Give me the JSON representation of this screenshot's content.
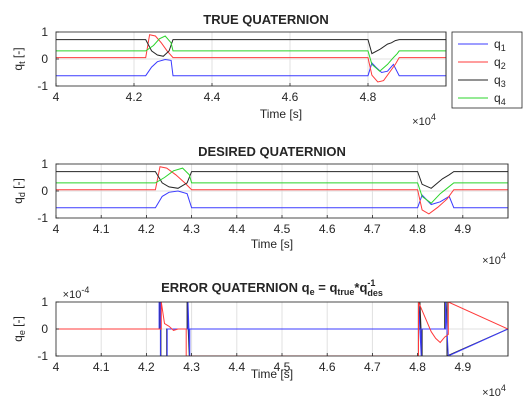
{
  "chart_data": [
    {
      "type": "line",
      "title": "TRUE QUATERNION",
      "xlabel": "Time [s]",
      "ylabel_main": "q",
      "ylabel_sub": "t",
      "ylabel_unit": "[-]",
      "xlim": [
        40000,
        50000
      ],
      "ylim": [
        -1,
        1
      ],
      "x_ticks": [
        "4",
        "4.2",
        "4.4",
        "4.6",
        "4.8"
      ],
      "x_tick_values": [
        40000,
        42000,
        44000,
        46000,
        48000
      ],
      "y_ticks": [
        "-1",
        "0",
        "1"
      ],
      "y_tick_values": [
        -1,
        0,
        1
      ],
      "x_multiplier_base": "×10",
      "x_multiplier_exp": "4",
      "grid": true,
      "legend": {
        "placement": "right",
        "entries": [
          {
            "main": "q",
            "sub": "1",
            "color": "#3b3bff"
          },
          {
            "main": "q",
            "sub": "2",
            "color": "#ff3b3b"
          },
          {
            "main": "q",
            "sub": "3",
            "color": "#262626"
          },
          {
            "main": "q",
            "sub": "4",
            "color": "#2bd42b"
          }
        ]
      },
      "series": [
        {
          "color": "#3b3bff",
          "x": [
            40000,
            42300,
            42450,
            42600,
            42800,
            42950,
            43000,
            48000,
            48100,
            48200,
            48350,
            48500,
            48650,
            48800,
            50000
          ],
          "y": [
            -0.62,
            -0.62,
            -0.3,
            -0.1,
            -0.02,
            -0.05,
            -0.62,
            -0.62,
            -0.15,
            -0.3,
            -0.5,
            -0.45,
            -0.2,
            -0.62,
            -0.62
          ]
        },
        {
          "color": "#ff3b3b",
          "x": [
            40000,
            42300,
            42400,
            42550,
            42700,
            42850,
            43000,
            48000,
            48100,
            48250,
            48400,
            48550,
            48700,
            48800,
            50000
          ],
          "y": [
            0.05,
            0.05,
            0.9,
            0.85,
            0.6,
            0.3,
            0.05,
            0.05,
            -0.6,
            -0.85,
            -0.8,
            -0.5,
            -0.2,
            0.05,
            0.05
          ]
        },
        {
          "color": "#262626",
          "x": [
            40000,
            42300,
            42450,
            42600,
            42750,
            42900,
            43000,
            48000,
            48100,
            48300,
            48500,
            48600,
            48700,
            48800,
            50000
          ],
          "y": [
            0.72,
            0.72,
            0.3,
            0.15,
            0.1,
            0.3,
            0.72,
            0.72,
            0.2,
            0.35,
            0.55,
            0.6,
            0.68,
            0.72,
            0.72
          ]
        },
        {
          "color": "#2bd42b",
          "x": [
            40000,
            42300,
            42500,
            42650,
            42800,
            42950,
            43000,
            48000,
            48100,
            48300,
            48500,
            48650,
            48750,
            48800,
            50000
          ],
          "y": [
            0.3,
            0.3,
            0.5,
            0.75,
            0.85,
            0.6,
            0.3,
            0.3,
            -0.2,
            -0.45,
            -0.2,
            0.05,
            0.2,
            0.3,
            0.3
          ]
        }
      ]
    },
    {
      "type": "line",
      "title": "DESIRED QUATERNION",
      "xlabel": "Time [s]",
      "ylabel_main": "q",
      "ylabel_sub": "d",
      "ylabel_unit": "[-]",
      "xlim": [
        40000,
        50000
      ],
      "ylim": [
        -1,
        1
      ],
      "x_ticks": [
        "4",
        "4.1",
        "4.2",
        "4.3",
        "4.4",
        "4.5",
        "4.6",
        "4.7",
        "4.8",
        "4.9"
      ],
      "x_tick_values": [
        40000,
        41000,
        42000,
        43000,
        44000,
        45000,
        46000,
        47000,
        48000,
        49000
      ],
      "y_ticks": [
        "-1",
        "0",
        "1"
      ],
      "y_tick_values": [
        -1,
        0,
        1
      ],
      "x_multiplier_base": "×10",
      "x_multiplier_exp": "4",
      "grid": true,
      "series": [
        {
          "color": "#3b3bff",
          "x": [
            40000,
            42200,
            42350,
            42500,
            42700,
            42900,
            43000,
            48000,
            48100,
            48300,
            48500,
            48700,
            48800,
            50000
          ],
          "y": [
            -0.62,
            -0.62,
            -0.2,
            -0.05,
            0.0,
            -0.1,
            -0.62,
            -0.62,
            -0.15,
            -0.5,
            -0.4,
            -0.2,
            -0.62,
            -0.62
          ]
        },
        {
          "color": "#ff3b3b",
          "x": [
            40000,
            42200,
            42300,
            42450,
            42650,
            42850,
            43000,
            48000,
            48100,
            48250,
            48450,
            48650,
            48800,
            50000
          ],
          "y": [
            0.05,
            0.05,
            0.9,
            0.85,
            0.6,
            0.3,
            0.05,
            0.05,
            -0.7,
            -0.85,
            -0.6,
            -0.3,
            0.05,
            0.05
          ]
        },
        {
          "color": "#262626",
          "x": [
            40000,
            42200,
            42350,
            42500,
            42700,
            42900,
            43000,
            48000,
            48100,
            48300,
            48550,
            48700,
            48800,
            50000
          ],
          "y": [
            0.72,
            0.72,
            0.3,
            0.15,
            0.1,
            0.3,
            0.72,
            0.72,
            0.25,
            0.1,
            0.45,
            0.6,
            0.72,
            0.72
          ]
        },
        {
          "color": "#2bd42b",
          "x": [
            40000,
            42200,
            42400,
            42600,
            42800,
            42950,
            43000,
            48000,
            48100,
            48300,
            48500,
            48650,
            48800,
            50000
          ],
          "y": [
            0.3,
            0.3,
            0.5,
            0.75,
            0.85,
            0.6,
            0.3,
            0.3,
            -0.2,
            -0.45,
            -0.1,
            0.1,
            0.3,
            0.3
          ]
        }
      ]
    },
    {
      "type": "line",
      "title_prefix": "ERROR QUATERNION q",
      "title_sub_e": "e",
      "title_mid": " = q",
      "title_sub_true": "true",
      "title_star": "*q",
      "title_sup": "-1",
      "title_sub_des": "des",
      "xlabel": "Time [s]",
      "ylabel_main": "q",
      "ylabel_sub": "e",
      "ylabel_unit": "[-]",
      "xlim": [
        40000,
        50000
      ],
      "ylim": [
        -1,
        1
      ],
      "x_ticks": [
        "4",
        "4.1",
        "4.2",
        "4.3",
        "4.4",
        "4.5",
        "4.6",
        "4.7",
        "4.8",
        "4.9"
      ],
      "x_tick_values": [
        40000,
        41000,
        42000,
        43000,
        44000,
        45000,
        46000,
        47000,
        48000,
        49000
      ],
      "y_ticks": [
        "-1",
        "0",
        "1"
      ],
      "y_tick_values": [
        -1,
        0,
        1
      ],
      "y_multiplier_base": "×10",
      "y_multiplier_exp": "-4",
      "x_multiplier_base": "×10",
      "x_multiplier_exp": "4",
      "grid": true,
      "series": [
        {
          "color": "#262626",
          "x": [
            40000,
            42300,
            42300,
            42320,
            42320,
            42450,
            42450,
            42900,
            42900,
            42950,
            42950,
            48050,
            48050,
            48100,
            48100,
            48600,
            48600,
            48650,
            48650,
            50000
          ],
          "y": [
            0,
            0,
            1,
            1,
            -1,
            -1,
            0,
            0,
            1,
            -1,
            0,
            0,
            1,
            -1,
            0,
            0,
            1,
            1,
            -1,
            0
          ]
        },
        {
          "color": "#3b3bff",
          "x": [
            40000,
            42280,
            42280,
            42310,
            42310,
            42460,
            42460,
            42920,
            42920,
            42960,
            42960,
            48020,
            48020,
            48080,
            48080,
            48620,
            48620,
            48680,
            48680,
            50000
          ],
          "y": [
            0,
            0,
            1,
            1,
            -1,
            -1,
            0,
            0,
            1,
            -1,
            0,
            0,
            1,
            -1,
            0,
            0,
            1,
            -1,
            -1,
            0
          ]
        },
        {
          "color": "#ff3b3b",
          "x": [
            40000,
            42330,
            42330,
            42400,
            42500,
            42600,
            42700,
            42880,
            42880,
            48020,
            48020,
            48200,
            48300,
            48400,
            48500,
            48600,
            48680,
            48680,
            50000
          ],
          "y": [
            0,
            0,
            1,
            0.2,
            0.1,
            -0.05,
            0.0,
            0.0,
            -1,
            -1,
            1,
            0.3,
            -0.1,
            -0.35,
            -0.5,
            -0.3,
            -0.2,
            1,
            0
          ]
        }
      ]
    }
  ]
}
